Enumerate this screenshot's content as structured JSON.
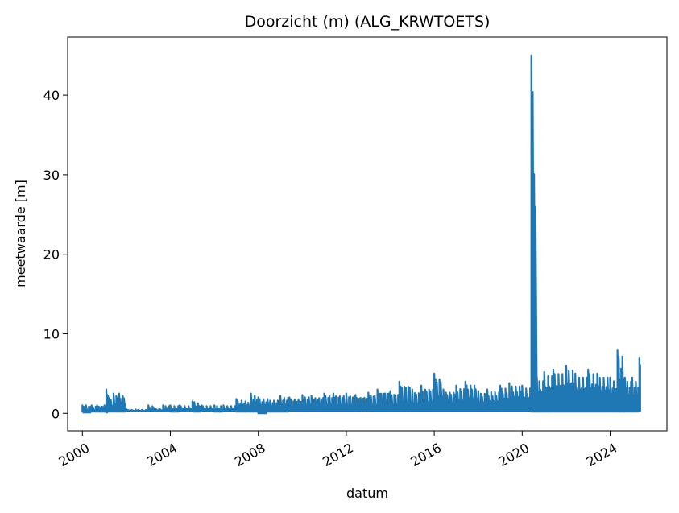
{
  "chart_data": {
    "type": "line",
    "title": "Doorzicht (m) (ALG_KRWTOETS)",
    "xlabel": "datum",
    "ylabel": "meetwaarde [m]",
    "x_ticks": [
      "2000",
      "2004",
      "2008",
      "2012",
      "2016",
      "2020",
      "2024"
    ],
    "y_ticks": [
      "0",
      "10",
      "20",
      "30",
      "40"
    ],
    "xlim": [
      "1999-05-01",
      "2026-08-01"
    ],
    "ylim": [
      -2.2,
      47.3
    ],
    "grid": false,
    "color": "#1f77b4",
    "series": [
      {
        "x": [
          "2000-01-01",
          "2000-03-01",
          "2000-06-01",
          "2000-09-01",
          "2001-01-01",
          "2001-02-01",
          "2001-03-01",
          "2001-06-01",
          "2001-09-01",
          "2002-01-01",
          "2002-06-01",
          "2003-01-01",
          "2003-04-01",
          "2003-09-01",
          "2004-01-01",
          "2004-06-01",
          "2005-01-01",
          "2005-02-01",
          "2005-06-01",
          "2006-01-01",
          "2006-06-01",
          "2007-01-01",
          "2007-06-01",
          "2007-09-01",
          "2008-01-01",
          "2008-06-01",
          "2009-01-01",
          "2009-06-01",
          "2010-01-01",
          "2010-06-01",
          "2011-01-01",
          "2011-06-01",
          "2012-01-01",
          "2012-06-01",
          "2013-01-01",
          "2013-06-01",
          "2014-01-01",
          "2014-06-01",
          "2015-01-01",
          "2015-06-01",
          "2016-01-01",
          "2016-06-01",
          "2017-01-01",
          "2017-06-01",
          "2018-01-01",
          "2018-06-01",
          "2019-01-01",
          "2019-06-01",
          "2020-01-01",
          "2020-06-01",
          "2020-09-01",
          "2021-01-01",
          "2021-06-01",
          "2022-01-01",
          "2022-06-01",
          "2023-01-01",
          "2023-06-01",
          "2024-01-01",
          "2024-05-01",
          "2024-09-01",
          "2025-01-01",
          "2025-05-01"
        ],
        "min": [
          0.1,
          0.1,
          0.2,
          0.2,
          0.2,
          0.1,
          0.2,
          0.2,
          0.2,
          0.3,
          0.3,
          0.3,
          0.3,
          0.3,
          0.2,
          0.3,
          0.3,
          0.2,
          0.3,
          0.2,
          0.3,
          0.2,
          0.2,
          0.2,
          0.0,
          0.2,
          0.2,
          0.3,
          0.3,
          0.3,
          0.3,
          0.3,
          0.3,
          0.3,
          0.3,
          0.3,
          0.3,
          0.3,
          0.3,
          0.3,
          0.3,
          0.3,
          0.3,
          0.3,
          0.3,
          0.3,
          0.3,
          0.3,
          0.3,
          0.2,
          0.2,
          0.2,
          0.2,
          0.2,
          0.2,
          0.2,
          0.2,
          0.2,
          0.2,
          0.2,
          0.2,
          0.3
        ],
        "max": [
          1.0,
          1.0,
          1.0,
          1.0,
          1.0,
          3.0,
          2.2,
          2.5,
          2.5,
          0.5,
          0.5,
          1.0,
          0.7,
          1.0,
          1.0,
          1.0,
          1.5,
          1.4,
          1.0,
          1.0,
          1.0,
          1.8,
          1.5,
          2.5,
          2.0,
          1.8,
          2.2,
          2.0,
          2.3,
          2.2,
          2.5,
          2.5,
          2.5,
          2.3,
          2.6,
          3.0,
          2.8,
          4.0,
          3.0,
          3.5,
          5.0,
          3.0,
          3.5,
          4.0,
          2.8,
          3.0,
          3.5,
          3.8,
          3.5,
          45.0,
          4.5,
          5.2,
          5.5,
          6.0,
          5.0,
          5.5,
          5.0,
          4.5,
          8.0,
          4.5,
          4.5,
          7.0
        ]
      }
    ]
  }
}
